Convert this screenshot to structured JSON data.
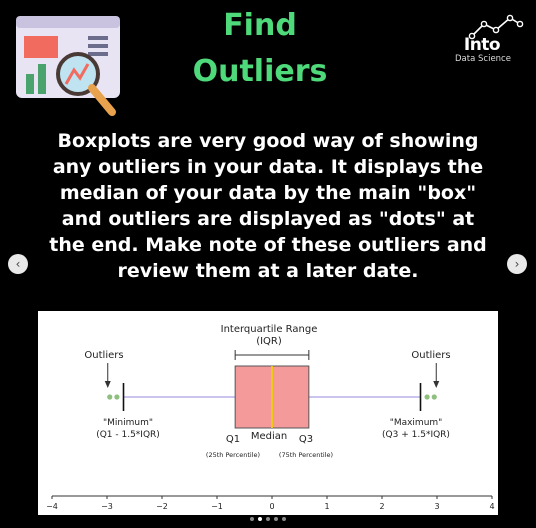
{
  "header": {
    "title_line1": "Find",
    "title_line2": "Outliers",
    "brand_word": "Into",
    "brand_sub": "Data Science"
  },
  "body": {
    "lines": [
      "Boxplots are very good way of showing",
      "any outliers in your data. It displays the",
      "median of your data by the main \"box\"",
      "and outliers are displayed as \"dots\" at",
      "the end. Make note of these outliers and",
      "review them at a later date."
    ]
  },
  "nav": {
    "prev_icon": "chevron-left-icon",
    "next_icon": "chevron-right-icon",
    "prev_glyph": "‹",
    "next_glyph": "›"
  },
  "carousel": {
    "slide_count": 5,
    "active_index": 1
  },
  "figure": {
    "iqr_label": "Interquartile Range",
    "iqr_sub": "(IQR)",
    "outliers_left": "Outliers",
    "outliers_right": "Outliers",
    "minimum_label": "\"Minimum\"",
    "minimum_formula": "(Q1 - 1.5*IQR)",
    "maximum_label": "\"Maximum\"",
    "maximum_formula": "(Q3 + 1.5*IQR)",
    "q1_label": "Q1",
    "median_label": "Median",
    "q3_label": "Q3",
    "q1_note": "(25th Percentile)",
    "q3_note": "(75th Percentile)",
    "colors": {
      "box_fill": "#f49a9a",
      "median_line": "#f0d000",
      "whisker": "#b8b0e8",
      "outlier_dot": "#8fbf7f"
    }
  },
  "chart_data": {
    "type": "boxplot",
    "x_ticks": [
      -4,
      -3,
      -2,
      -1,
      0,
      1,
      2,
      3,
      4
    ],
    "xlim": [
      -4,
      4
    ],
    "min": -2.7,
    "q1": -0.67,
    "median": 0,
    "q3": 0.67,
    "max": 2.7,
    "outliers": [
      -2.95,
      -2.82,
      2.82,
      2.95
    ]
  }
}
